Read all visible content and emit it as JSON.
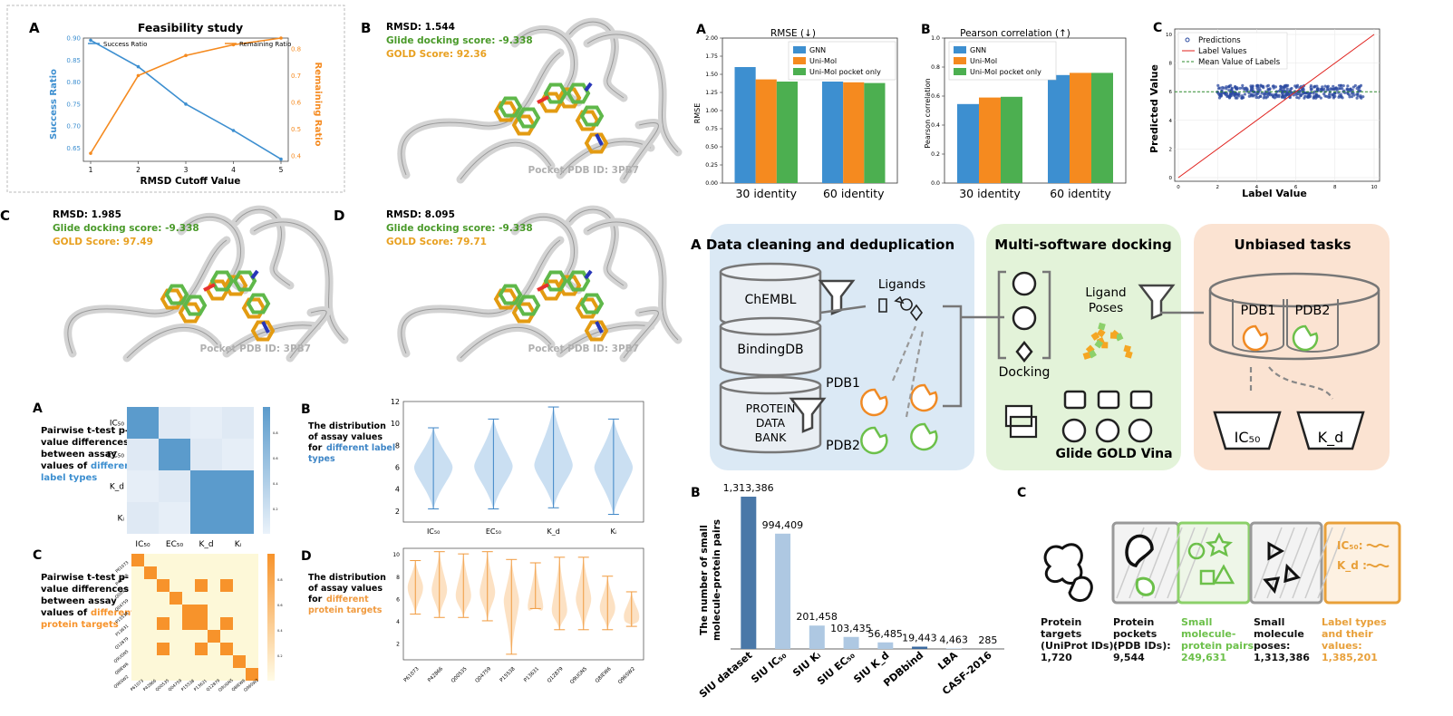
{
  "colors": {
    "blue": "#3d8fd0",
    "orange": "#f58a1f",
    "green": "#4caf50",
    "glide": "#4a9a2a",
    "gold": "#e8a020",
    "lightblue": "#3d8fd0",
    "gray": "#9e9e9e",
    "boxBlue": "#dbe9f5",
    "boxGreen": "#e3f3d9",
    "boxPeach": "#fbe3d2",
    "bar_dark": "#4a78a8",
    "bar_light": "#aec8e2",
    "heat_blue": "#5b9bcc",
    "heat_orange": "#f7932b",
    "heat_cream": "#fdf8d8"
  },
  "panelA": {
    "letter": "A",
    "title": "Feasibility study",
    "xlabel": "RMSD Cutoff Value",
    "ylabel_left": "Success Ratio",
    "ylabel_right": "Remaining Ratio",
    "legend_left": "Success Ratio",
    "legend_right": "Remaining Ratio"
  },
  "chart_data": [
    {
      "type": "line",
      "title": "Feasibility study",
      "xlabel": "RMSD Cutoff Value",
      "ylabel": "Success Ratio",
      "x": [
        1,
        2,
        3,
        4,
        5
      ],
      "series": [
        {
          "name": "Success Ratio",
          "axis": "left",
          "values": [
            0.895,
            0.835,
            0.75,
            0.69,
            0.625
          ]
        },
        {
          "name": "Remaining Ratio",
          "axis": "right",
          "values": [
            0.41,
            0.7,
            0.775,
            0.815,
            0.84
          ]
        }
      ],
      "xticks": [
        "1",
        "2",
        "3",
        "4",
        "5"
      ],
      "yticks_left": [
        "0.65",
        "0.70",
        "0.75",
        "0.80",
        "0.85",
        "0.90"
      ],
      "yticks_right": [
        "0.4",
        "0.5",
        "0.6",
        "0.7",
        "0.8"
      ],
      "ylim_left": [
        0.62,
        0.9
      ],
      "ylim_right": [
        0.38,
        0.84
      ]
    },
    {
      "type": "bar",
      "title": "RMSE (↓)",
      "ylabel": "RMSE",
      "categories": [
        "30 identity",
        "60 identity"
      ],
      "series": [
        {
          "name": "GNN",
          "values": [
            1.6,
            1.4
          ]
        },
        {
          "name": "Uni-Mol",
          "values": [
            1.43,
            1.39
          ]
        },
        {
          "name": "Uni-Mol pocket only",
          "values": [
            1.4,
            1.38
          ]
        }
      ],
      "ylim": [
        0,
        2.0
      ],
      "yticks": [
        "0.00",
        "0.25",
        "0.50",
        "0.75",
        "1.00",
        "1.25",
        "1.50",
        "1.75",
        "2.00"
      ],
      "legend": "top-right"
    },
    {
      "type": "bar",
      "title": "Pearson correlation (↑)",
      "ylabel": "Pearson correlation",
      "categories": [
        "30 identity",
        "60 identity"
      ],
      "series": [
        {
          "name": "GNN",
          "values": [
            0.545,
            0.745
          ]
        },
        {
          "name": "Uni-Mol",
          "values": [
            0.59,
            0.76
          ]
        },
        {
          "name": "Uni-Mol pocket only",
          "values": [
            0.595,
            0.76
          ]
        }
      ],
      "ylim": [
        0,
        1.0
      ],
      "yticks": [
        "0.0",
        "0.2",
        "0.4",
        "0.6",
        "0.8",
        "1.0"
      ],
      "legend": "top-left"
    },
    {
      "type": "scatter",
      "xlabel": "Label Value",
      "ylabel": "Predicted Value",
      "xlim": [
        0,
        10
      ],
      "ylim": [
        0,
        10
      ],
      "xticks": [
        "0",
        "2",
        "4",
        "6",
        "8",
        "10"
      ],
      "yticks": [
        "0",
        "2",
        "4",
        "6",
        "8",
        "10"
      ],
      "series": [
        {
          "name": "Predictions"
        },
        {
          "name": "Label Values"
        },
        {
          "name": "Mean Value of Labels",
          "value": 6.0
        }
      ],
      "legend": "top-left"
    },
    {
      "type": "bar",
      "ylabel": "The number of small molecule-protein pairs",
      "categories": [
        "SIU dataset",
        "SIU IC₅₀",
        "SIU Kᵢ",
        "SIU EC₅₀",
        "SIU K_d",
        "PDBbind",
        "LBA",
        "CASF-2016"
      ],
      "values": [
        1313386,
        994409,
        201458,
        103435,
        56485,
        19443,
        4463,
        285
      ],
      "labels": [
        "1,313,386",
        "994,409",
        "201,458",
        "103,435",
        "56,485",
        "19,443",
        "4,463",
        "285"
      ],
      "ylim": [
        0,
        1313386
      ]
    },
    {
      "type": "heatmap",
      "categories": [
        "IC₅₀",
        "EC₅₀",
        "K_d",
        "Kᵢ"
      ],
      "colorbar_ticks": [
        "0.2",
        "0.4",
        "0.6",
        "0.8"
      ]
    },
    {
      "type": "violin",
      "yticks": [
        "2",
        "4",
        "6",
        "8",
        "10",
        "12"
      ],
      "categories": [
        "IC₅₀",
        "EC₅₀",
        "K_d",
        "Kᵢ"
      ],
      "ranges": [
        [
          2.2,
          9.6
        ],
        [
          2.2,
          10.4
        ],
        [
          2.3,
          11.5
        ],
        [
          1.7,
          10.4
        ]
      ],
      "centers": [
        6.0,
        6.1,
        6.2,
        6.0
      ],
      "ylim": [
        1,
        12
      ]
    },
    {
      "type": "heatmap",
      "categories": [
        "P61073",
        "P42866",
        "Q00535",
        "Q04759",
        "P15538",
        "P13631",
        "Q12879",
        "Q9UGN5",
        "Q8IEW6",
        "Q96SW2"
      ],
      "colorbar_ticks": [
        "0.2",
        "0.4",
        "0.6",
        "0.8"
      ]
    },
    {
      "type": "violin",
      "yticks": [
        "2",
        "4",
        "6",
        "8",
        "10"
      ],
      "categories": [
        "P61073",
        "P42866",
        "Q00535",
        "Q04759",
        "P15538",
        "P13631",
        "Q12879",
        "Q9UGN5",
        "Q8IEW6",
        "Q96SW2"
      ],
      "ranges": [
        [
          4.6,
          9.4
        ],
        [
          4.3,
          10.2
        ],
        [
          4.3,
          10.0
        ],
        [
          4.0,
          10.2
        ],
        [
          1.0,
          9.5
        ],
        [
          5.1,
          9.2
        ],
        [
          3.2,
          9.7
        ],
        [
          3.2,
          9.7
        ],
        [
          3.2,
          8.0
        ],
        [
          3.5,
          6.6
        ]
      ],
      "centers": [
        7.0,
        6.8,
        6.3,
        6.6,
        5.8,
        5.3,
        5.0,
        6.0,
        5.2,
        4.4
      ],
      "ylim": [
        0.5,
        10.5
      ]
    }
  ],
  "poseB": {
    "letter": "B",
    "rmsd": "RMSD: 1.544",
    "glide": "Glide docking score: -9.338",
    "gold": "GOLD Score: 92.36",
    "pocket": "Pocket PDB ID: 3PB7"
  },
  "poseC": {
    "letter": "C",
    "rmsd": "RMSD: 1.985",
    "glide": "Glide docking score: -9.338",
    "gold": "GOLD Score: 97.49",
    "pocket": "Pocket PDB ID: 3PB7"
  },
  "poseD": {
    "letter": "D",
    "rmsd": "RMSD: 8.095",
    "glide": "Glide docking score: -9.338",
    "gold": "GOLD Score: 79.71",
    "pocket": "Pocket PDB ID: 3PB7"
  },
  "rmse": {
    "letter": "A",
    "title": "RMSE (↓)",
    "ylabel": "RMSE",
    "categories": [
      "30 identity",
      "60 identity"
    ],
    "legend": [
      "GNN",
      "Uni-Mol",
      "Uni-Mol pocket only"
    ]
  },
  "pearson": {
    "letter": "B",
    "title": "Pearson correlation (↑)",
    "ylabel": "Pearson correlation",
    "categories": [
      "30 identity",
      "60 identity"
    ],
    "legend": [
      "GNN",
      "Uni-Mol",
      "Uni-Mol pocket only"
    ]
  },
  "scatter": {
    "letter": "C",
    "xlabel": "Label Value",
    "ylabel": "Predicted Value",
    "legend": [
      "Predictions",
      "Label Values",
      "Mean Value of Labels"
    ]
  },
  "pipeline": {
    "letter": "A",
    "box1_title": "Data cleaning and deduplication",
    "box2_title": "Multi-software docking",
    "box3_title": "Unbiased tasks",
    "chembl": "ChEMBL",
    "bindingdb": "BindingDB",
    "pdb_line1": "PROTEIN",
    "pdb_line2": "DATA",
    "pdb_line3": "BANK",
    "ligands": "Ligands",
    "pdb1": "PDB1",
    "pdb2": "PDB2",
    "docking": "Docking",
    "ligand_poses_1": "Ligand",
    "ligand_poses_2": "Poses",
    "glide_gold_vina": "Glide GOLD Vina",
    "t_pdb1": "PDB1",
    "t_pdb2": "PDB2",
    "ic50": "IC₅₀",
    "kd": "K_d"
  },
  "counts": {
    "letter": "B",
    "ylabel_1": "The number of small",
    "ylabel_2": "molecule-protein pairs"
  },
  "stats": {
    "letter": "C",
    "items": [
      {
        "l1": "Protein",
        "l2": "targets",
        "l3": "(UniProt IDs):",
        "l4": "1,720",
        "color": "#111"
      },
      {
        "l1": "Protein",
        "l2": "pockets",
        "l3": "(PDB IDs):",
        "l4": "9,544",
        "color": "#111"
      },
      {
        "l1": "Small",
        "l2": "molecule-",
        "l3": "protein pairs:",
        "l4": "249,631",
        "color": "#6cc04a"
      },
      {
        "l1": "Small",
        "l2": "molecule",
        "l3": "poses:",
        "l4": "1,313,386",
        "color": "#111"
      },
      {
        "l1": "Label types",
        "l2": "and their",
        "l3": "values:",
        "l4": "1,385,201",
        "color": "#e8a03a"
      }
    ],
    "badge_ic50": "IC₅₀:",
    "badge_kd": "K_d :"
  },
  "heatA": {
    "letter": "A",
    "desc1": "Pairwise t-test p-",
    "desc2": "value differences",
    "desc3": "between assay",
    "desc4": "values of ",
    "desc_hl1": "different",
    "desc_hl2": "label types"
  },
  "violinB": {
    "letter": "B",
    "desc1": "The distribution",
    "desc2": "of assay values",
    "desc3": "for ",
    "desc_hl1": "different label",
    "desc_hl2": "types"
  },
  "heatC": {
    "letter": "C",
    "desc1": "Pairwise t-test p-",
    "desc2": "value differences",
    "desc3": "between assay",
    "desc4": "values of ",
    "desc_hl1": "different",
    "desc_hl2": "protein targets"
  },
  "violinD": {
    "letter": "D",
    "desc1": "The distribution",
    "desc2": "of assay values",
    "desc3": "for ",
    "desc_hl1": "different",
    "desc_hl2": "protein targets"
  }
}
